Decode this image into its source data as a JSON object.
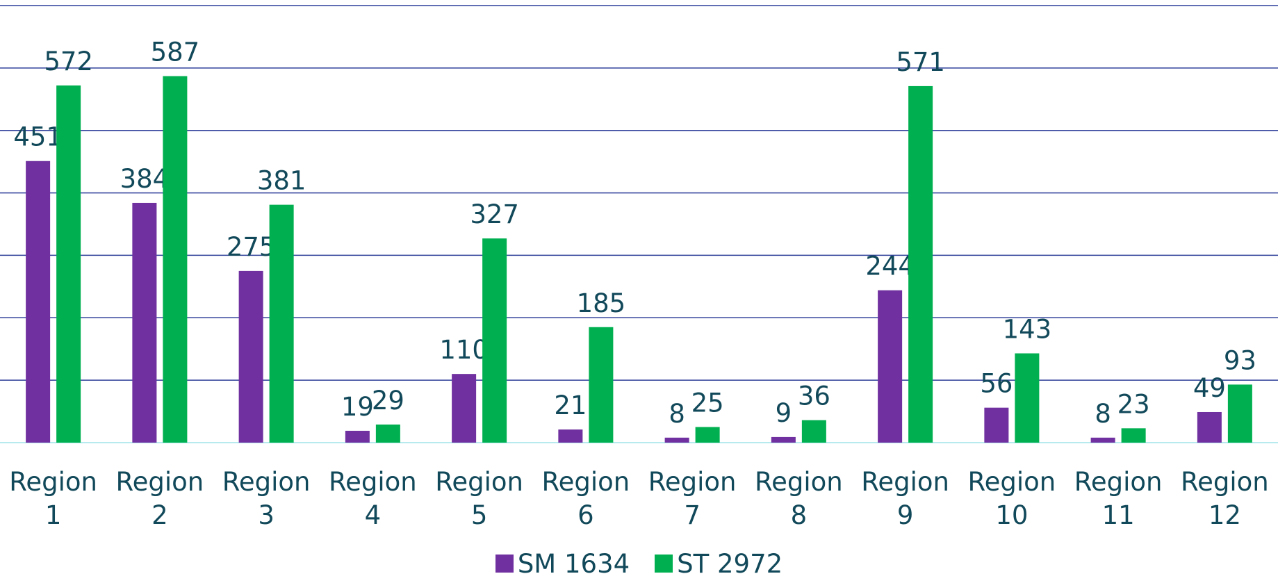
{
  "chart_data": {
    "type": "bar",
    "categories": [
      "Region 1",
      "Region 2",
      "Region 3",
      "Region 4",
      "Region 5",
      "Region 6",
      "Region 7",
      "Region 8",
      "Region 9",
      "Region 10",
      "Region 11",
      "Region 12"
    ],
    "series": [
      {
        "name": "SM 1634",
        "color": "#7030a0",
        "values": [
          451,
          384,
          275,
          19,
          110,
          21,
          8,
          9,
          244,
          56,
          8,
          49
        ]
      },
      {
        "name": "ST 2972",
        "color": "#00b050",
        "values": [
          572,
          587,
          381,
          29,
          327,
          185,
          25,
          36,
          571,
          143,
          23,
          93
        ]
      }
    ],
    "ylim": [
      0,
      700
    ],
    "yticks": [
      0,
      100,
      200,
      300,
      400,
      500,
      600,
      700
    ],
    "grid": true,
    "legend": "bottom"
  }
}
